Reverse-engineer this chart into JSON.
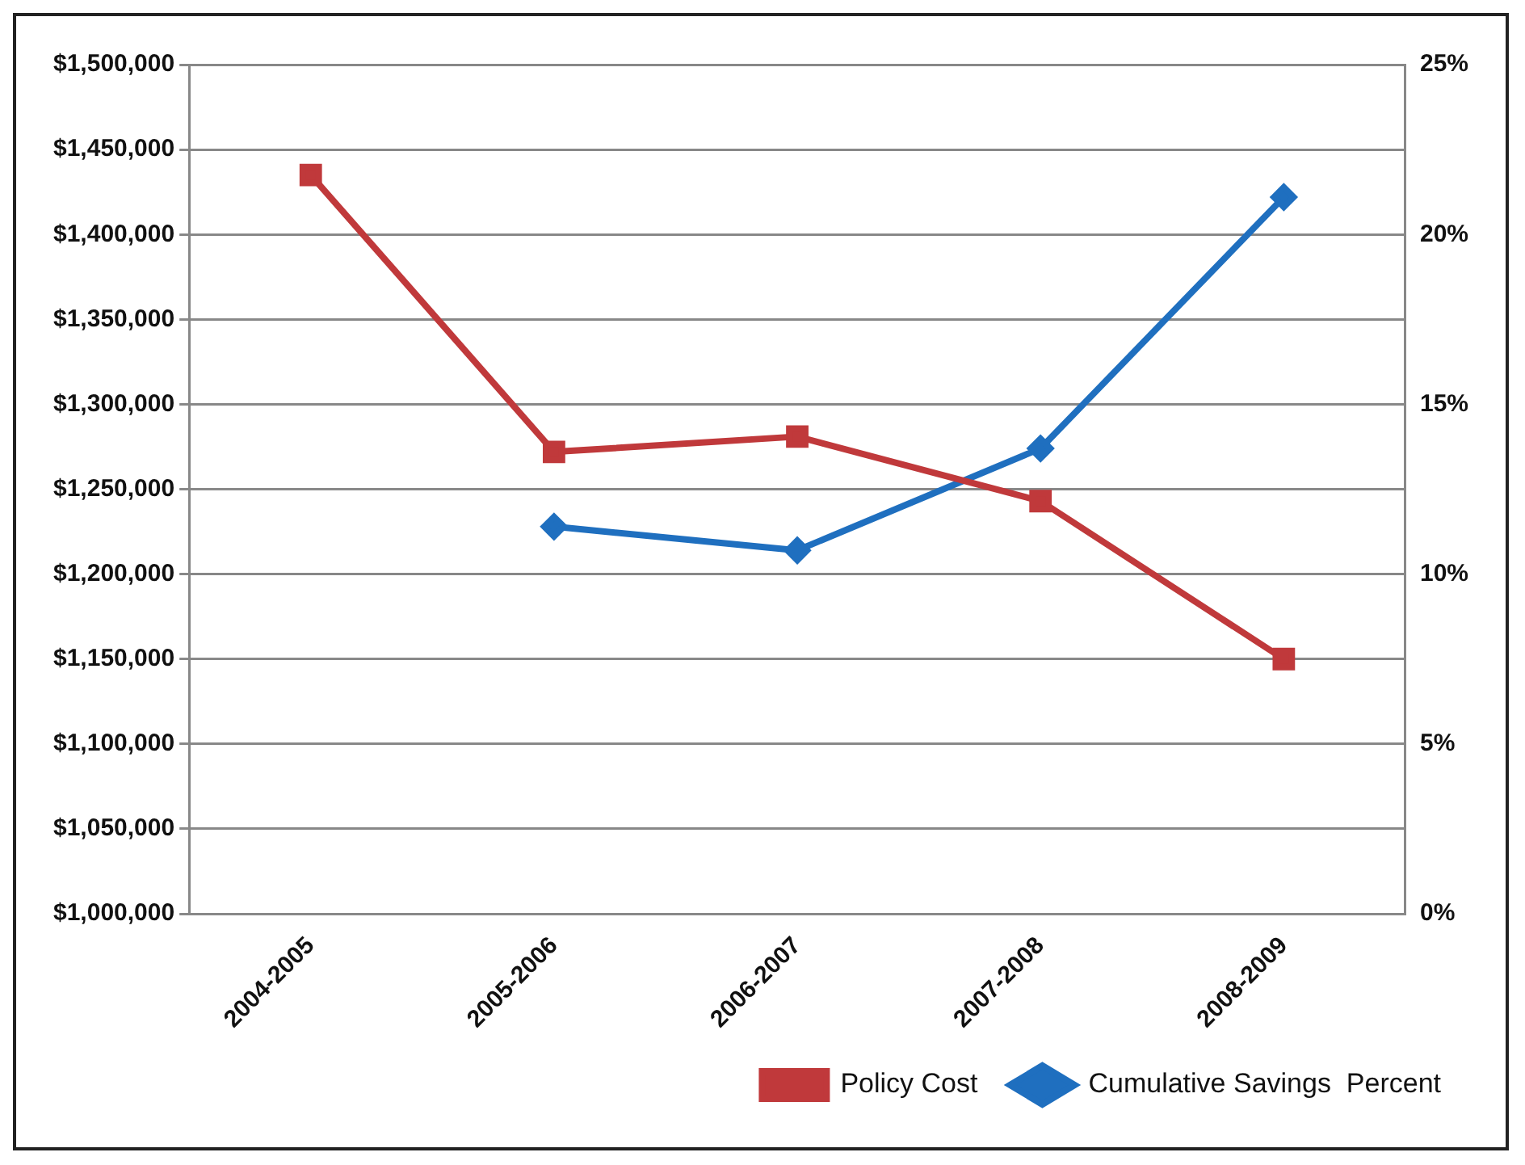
{
  "chart_data": {
    "type": "line",
    "categories": [
      "2004-2005",
      "2005-2006",
      "2006-2007",
      "2007-2008",
      "2008-2009"
    ],
    "series": [
      {
        "name": "Policy Cost",
        "color": "#c0393b",
        "values": [
          1435000,
          1272000,
          1281000,
          1243000,
          1150000
        ],
        "marker": "square"
      },
      {
        "name": "Cumulative Savings  Percent",
        "color": "#1f6fbf",
        "values": [
          null,
          11.4,
          10.7,
          13.7,
          21.1
        ],
        "marker": "diamond",
        "axis": "y2"
      }
    ],
    "ylim": [
      1000000,
      1500000
    ],
    "yticks": [
      {
        "value": 1000000,
        "label": "$1,000,000"
      },
      {
        "value": 1050000,
        "label": "$1,050,000"
      },
      {
        "value": 1100000,
        "label": "$1,100,000"
      },
      {
        "value": 1150000,
        "label": "$1,150,000"
      },
      {
        "value": 1200000,
        "label": "$1,200,000"
      },
      {
        "value": 1250000,
        "label": "$1,250,000"
      },
      {
        "value": 1300000,
        "label": "$1,300,000"
      },
      {
        "value": 1350000,
        "label": "$1,350,000"
      },
      {
        "value": 1400000,
        "label": "$1,400,000"
      },
      {
        "value": 1450000,
        "label": "$1,450,000"
      },
      {
        "value": 1500000,
        "label": "$1,500,000"
      }
    ],
    "y2lim": [
      0,
      25
    ],
    "y2ticks": [
      {
        "value": 0,
        "label": "0%"
      },
      {
        "value": 5,
        "label": "5%"
      },
      {
        "value": 10,
        "label": "10%"
      },
      {
        "value": 15,
        "label": "15%"
      },
      {
        "value": 20,
        "label": "20%"
      },
      {
        "value": 25,
        "label": "25%"
      }
    ],
    "grid": "y",
    "legend": "bottom right",
    "line_style": "solid"
  }
}
